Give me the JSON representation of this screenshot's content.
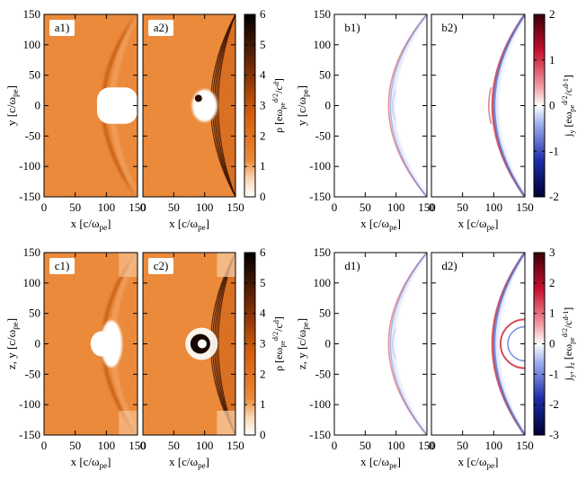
{
  "figure": {
    "panels": [
      {
        "id": "a1",
        "label": "a1)",
        "kind": "density-1"
      },
      {
        "id": "a2",
        "label": "a2)",
        "kind": "density-2"
      },
      {
        "id": "b1",
        "label": "b1)",
        "kind": "current-1"
      },
      {
        "id": "b2",
        "label": "b2)",
        "kind": "current-2"
      },
      {
        "id": "c1",
        "label": "c1)",
        "kind": "density-1"
      },
      {
        "id": "c2",
        "label": "c2)",
        "kind": "density-2"
      },
      {
        "id": "d1",
        "label": "d1)",
        "kind": "current-1"
      },
      {
        "id": "d2",
        "label": "d2)",
        "kind": "current-2"
      }
    ],
    "groups": [
      {
        "id": "a",
        "ylabel_main": "y [c/ω",
        "ylabel_sub": "pe",
        "ylabel_end": "]"
      },
      {
        "id": "b",
        "ylabel_main": "y [c/ω",
        "ylabel_sub": "pe",
        "ylabel_end": "]"
      },
      {
        "id": "c",
        "ylabel_main": "z, y [c/ω",
        "ylabel_sub": "pe",
        "ylabel_end": "]"
      },
      {
        "id": "d",
        "ylabel_main": "z, y [c/ω",
        "ylabel_sub": "pe",
        "ylabel_end": "]"
      }
    ],
    "xlabel_main": "x [c/ω",
    "xlabel_sub": "pe",
    "xlabel_end": "]",
    "xticks": [
      "0",
      "50",
      "100",
      "150"
    ],
    "yticks": [
      "150",
      "100",
      "50",
      "0",
      "-50",
      "-100",
      "-150"
    ],
    "colorbars": [
      {
        "id": "cb-top-density",
        "label": "ρ [eω_pe^(d/2)/c^d]",
        "parts": [
          "ρ [eω",
          "pe",
          "d/2",
          "/c",
          "d",
          "]"
        ],
        "ticks": [
          "6",
          "5",
          "4",
          "3",
          "2",
          "1",
          "0"
        ],
        "range": [
          0,
          6
        ],
        "colormap": "white-orange-black"
      },
      {
        "id": "cb-top-current",
        "label": "j_y [eω_pe^(d/2)/c^(d-1)]",
        "parts": [
          "j",
          "y",
          " [eω",
          "pe",
          "d/2",
          "/c",
          "d-1",
          "]"
        ],
        "ticks": [
          "2",
          "1",
          "0",
          "-1",
          "-2"
        ],
        "range": [
          -2,
          2
        ],
        "colormap": "blue-white-red"
      },
      {
        "id": "cb-bot-density",
        "label": "ρ [eω_pe^(d/2)/c^d]",
        "parts": [
          "ρ [eω",
          "pe",
          "d/2",
          "/c",
          "d",
          "]"
        ],
        "ticks": [
          "6",
          "5",
          "4",
          "3",
          "2",
          "1",
          "0"
        ],
        "range": [
          0,
          6
        ],
        "colormap": "white-orange-black"
      },
      {
        "id": "cb-bot-current",
        "label": "j_y, j_z [eω_pe^(d/2)/c^(d-1)]",
        "parts": [
          "j",
          "y",
          ", j",
          "z",
          " [eω",
          "pe",
          "d/2",
          "/c",
          "d-1",
          "]"
        ],
        "ticks": [
          "3",
          "2",
          "1",
          "0",
          "-1",
          "-2",
          "-3"
        ],
        "range": [
          -3,
          3
        ],
        "colormap": "blue-white-red"
      }
    ],
    "colors": {
      "orange_bg": "#eb8a3b",
      "dark": "#1a0600",
      "red": "#c8232f",
      "blue": "#3a5cc8"
    }
  },
  "chart_data": [
    {
      "type": "heatmap",
      "panel": "a1",
      "quantity": "ρ",
      "x_range": [
        0,
        150
      ],
      "y_range": [
        -150,
        150
      ],
      "z_range": [
        0,
        6
      ]
    },
    {
      "type": "heatmap",
      "panel": "a2",
      "quantity": "ρ",
      "x_range": [
        0,
        150
      ],
      "y_range": [
        -150,
        150
      ],
      "z_range": [
        0,
        6
      ]
    },
    {
      "type": "heatmap",
      "panel": "b1",
      "quantity": "j_y",
      "x_range": [
        0,
        150
      ],
      "y_range": [
        -150,
        150
      ],
      "z_range": [
        -2,
        2
      ]
    },
    {
      "type": "heatmap",
      "panel": "b2",
      "quantity": "j_y",
      "x_range": [
        0,
        150
      ],
      "y_range": [
        -150,
        150
      ],
      "z_range": [
        -2,
        2
      ]
    },
    {
      "type": "heatmap",
      "panel": "c1",
      "quantity": "ρ",
      "x_range": [
        0,
        150
      ],
      "y_range": [
        -150,
        150
      ],
      "z_range": [
        0,
        6
      ]
    },
    {
      "type": "heatmap",
      "panel": "c2",
      "quantity": "ρ",
      "x_range": [
        0,
        150
      ],
      "y_range": [
        -150,
        150
      ],
      "z_range": [
        0,
        6
      ]
    },
    {
      "type": "heatmap",
      "panel": "d1",
      "quantity": "j_y, j_z",
      "x_range": [
        0,
        150
      ],
      "y_range": [
        -150,
        150
      ],
      "z_range": [
        -3,
        3
      ]
    },
    {
      "type": "heatmap",
      "panel": "d2",
      "quantity": "j_y, j_z",
      "x_range": [
        0,
        150
      ],
      "y_range": [
        -150,
        150
      ],
      "z_range": [
        -3,
        3
      ]
    }
  ]
}
